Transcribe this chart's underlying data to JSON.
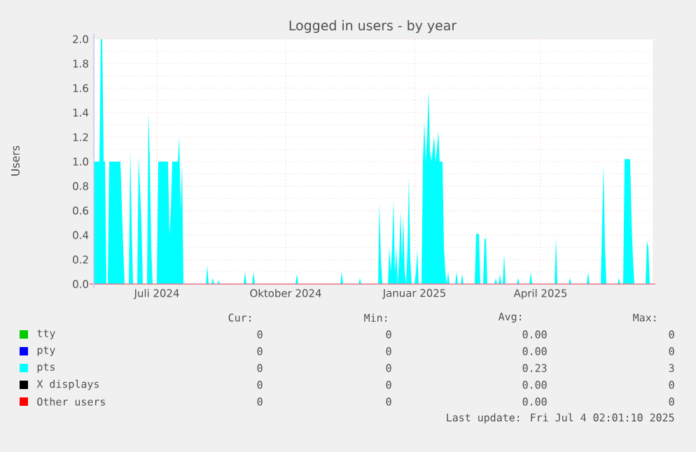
{
  "chart_data": {
    "type": "area",
    "title": "Logged in users - by year",
    "ylabel": "Users",
    "xlim": [
      "2024-05-17",
      "2025-06-20"
    ],
    "xticks": [
      {
        "value": "2024-07-01",
        "label": "Juli 2024"
      },
      {
        "value": "2024-10-01",
        "label": "Oktober 2024"
      },
      {
        "value": "2025-01-01",
        "label": "Januar 2025"
      },
      {
        "value": "2025-04-01",
        "label": "April 2025"
      }
    ],
    "ylim": [
      0,
      2.0
    ],
    "yticks": [
      {
        "value": 0,
        "label": "0.0"
      },
      {
        "value": 0.2,
        "label": "0.2"
      },
      {
        "value": 0.4,
        "label": "0.4"
      },
      {
        "value": 0.6,
        "label": "0.6"
      },
      {
        "value": 0.8,
        "label": "0.8"
      },
      {
        "value": 1.0,
        "label": "1.0"
      },
      {
        "value": 1.2,
        "label": "1.2"
      },
      {
        "value": 1.4,
        "label": "1.4"
      },
      {
        "value": 1.6,
        "label": "1.6"
      },
      {
        "value": 1.8,
        "label": "1.8"
      },
      {
        "value": 2.0,
        "label": "2.0"
      }
    ],
    "grid": true,
    "legend": "bottom",
    "series": [
      {
        "name": "tty",
        "color": "#00cc00"
      },
      {
        "name": "pty",
        "color": "#0000ff"
      },
      {
        "name": "pts",
        "color": "#00ffff",
        "x": [
          "2024-05-17",
          "2024-05-21",
          "2024-05-22",
          "2024-05-23",
          "2024-05-24",
          "2024-05-25",
          "2024-05-26",
          "2024-05-27",
          "2024-05-28",
          "2024-06-05",
          "2024-06-07",
          "2024-06-08",
          "2024-06-11",
          "2024-06-12",
          "2024-06-13",
          "2024-06-14",
          "2024-06-17",
          "2024-06-18",
          "2024-06-20",
          "2024-06-21",
          "2024-06-24",
          "2024-06-25",
          "2024-06-26",
          "2024-06-27",
          "2024-06-28",
          "2024-07-01",
          "2024-07-02",
          "2024-07-09",
          "2024-07-10",
          "2024-07-11",
          "2024-07-12",
          "2024-07-16",
          "2024-07-17",
          "2024-07-18",
          "2024-07-19",
          "2024-07-20",
          "2024-08-05",
          "2024-08-06",
          "2024-08-07",
          "2024-08-09",
          "2024-08-10",
          "2024-08-11",
          "2024-08-13",
          "2024-08-14",
          "2024-08-15",
          "2024-09-01",
          "2024-09-02",
          "2024-09-03",
          "2024-09-07",
          "2024-09-08",
          "2024-09-09",
          "2024-10-08",
          "2024-10-09",
          "2024-10-10",
          "2024-11-09",
          "2024-11-10",
          "2024-11-11",
          "2024-11-22",
          "2024-11-23",
          "2024-11-24",
          "2024-12-06",
          "2024-12-07",
          "2024-12-08",
          "2024-12-09",
          "2024-12-13",
          "2024-12-14",
          "2024-12-15",
          "2024-12-16",
          "2024-12-17",
          "2024-12-18",
          "2024-12-19",
          "2024-12-20",
          "2024-12-21",
          "2024-12-22",
          "2024-12-23",
          "2024-12-24",
          "2024-12-25",
          "2024-12-26",
          "2024-12-27",
          "2024-12-28",
          "2024-12-29",
          "2024-12-30",
          "2025-01-01",
          "2025-01-02",
          "2025-01-03",
          "2025-01-04",
          "2025-01-06",
          "2025-01-07",
          "2025-01-08",
          "2025-01-09",
          "2025-01-10",
          "2025-01-11",
          "2025-01-12",
          "2025-01-13",
          "2025-01-14",
          "2025-01-15",
          "2025-01-16",
          "2025-01-17",
          "2025-01-18",
          "2025-01-19",
          "2025-01-21",
          "2025-01-22",
          "2025-01-23",
          "2025-01-24",
          "2025-01-25",
          "2025-01-26",
          "2025-01-30",
          "2025-01-31",
          "2025-02-01",
          "2025-02-03",
          "2025-02-04",
          "2025-02-05",
          "2025-02-13",
          "2025-02-14",
          "2025-02-16",
          "2025-02-17",
          "2025-02-19",
          "2025-02-20",
          "2025-02-21",
          "2025-02-22",
          "2025-02-27",
          "2025-02-28",
          "2025-03-01",
          "2025-03-02",
          "2025-03-03",
          "2025-03-04",
          "2025-03-05",
          "2025-03-06",
          "2025-03-07",
          "2025-03-15",
          "2025-03-16",
          "2025-03-17",
          "2025-03-24",
          "2025-03-25",
          "2025-03-26",
          "2025-04-11",
          "2025-04-12",
          "2025-04-13",
          "2025-04-21",
          "2025-04-22",
          "2025-04-23",
          "2025-05-04",
          "2025-05-05",
          "2025-05-06",
          "2025-05-14",
          "2025-05-15",
          "2025-05-16",
          "2025-05-17",
          "2025-05-18",
          "2025-05-26",
          "2025-05-27",
          "2025-05-28",
          "2025-05-30",
          "2025-05-31",
          "2025-06-04",
          "2025-06-05",
          "2025-06-06",
          "2025-06-07",
          "2025-06-15",
          "2025-06-16",
          "2025-06-17",
          "2025-06-18"
        ],
        "values": [
          1.0,
          1.0,
          2.0,
          2.0,
          1.0,
          1.0,
          0,
          0,
          1.0,
          1.0,
          0.3,
          0,
          0,
          1.1,
          0.5,
          0,
          0,
          1.05,
          0.5,
          0,
          0,
          1.4,
          1.0,
          0.3,
          0,
          0,
          1.0,
          1.0,
          0.4,
          0.6,
          1.0,
          1.0,
          1.2,
          0.6,
          1.0,
          0,
          0,
          0.15,
          0,
          0,
          0.05,
          0,
          0,
          0.03,
          0,
          0,
          0.1,
          0,
          0,
          0.1,
          0,
          0,
          0.08,
          0,
          0,
          0.1,
          0,
          0,
          0.05,
          0,
          0,
          0.66,
          0.2,
          0,
          0,
          0.3,
          0.1,
          0.3,
          0.69,
          0.1,
          0.3,
          0,
          0.2,
          0.6,
          0.2,
          0.55,
          0.1,
          0,
          0.3,
          0.87,
          0.2,
          0,
          0,
          0.1,
          0.28,
          0,
          0,
          1.0,
          1.33,
          1.0,
          1.2,
          1.58,
          1.1,
          1.0,
          1.1,
          1.21,
          1.0,
          1.1,
          1.25,
          1.0,
          1.0,
          0.3,
          0.1,
          0,
          0.1,
          0,
          0,
          0.1,
          0,
          0,
          0.08,
          0,
          0,
          0.41,
          0.41,
          0,
          0,
          0.37,
          0.37,
          0,
          0,
          0.05,
          0,
          0,
          0.08,
          0,
          0,
          0.25,
          0,
          0,
          0.05,
          0,
          0,
          0.1,
          0,
          0,
          0.38,
          0,
          0,
          0.05,
          0,
          0,
          0.1,
          0,
          0,
          0.5,
          0.97,
          0.3,
          0,
          0,
          0.05,
          0,
          0,
          1.02,
          1.02,
          0.5,
          0.2,
          0,
          0,
          0.35,
          0.3,
          0
        ]
      },
      {
        "name": "X displays",
        "color": "#000000"
      },
      {
        "name": "Other users",
        "color": "#ff0000"
      }
    ],
    "annotations": [
      "Cur:",
      "Min:",
      "Avg:",
      "Max:",
      "0",
      "0",
      "0.00",
      "0",
      "0",
      "0",
      "0.00",
      "0",
      "0",
      "0",
      "0.23",
      "3",
      "0",
      "0",
      "0.00",
      "0",
      "0",
      "0",
      "0.00",
      "0",
      "Last update: Fri Jul  4 02:01:10 2025"
    ]
  }
}
